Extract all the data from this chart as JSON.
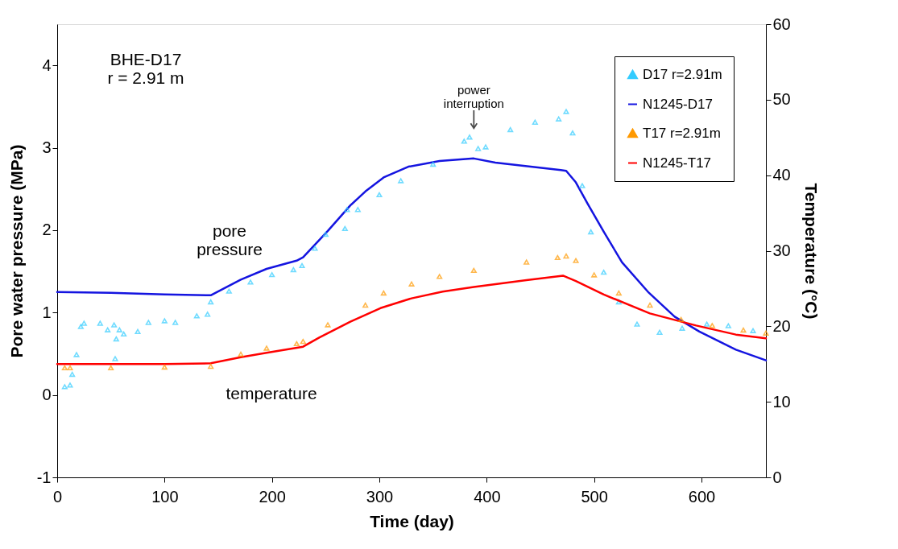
{
  "chart_data": {
    "type": "line",
    "xlabel": "Time   (day)",
    "ylabel": "Pore water pressure   (MPa)",
    "y2label": "Temperature   (°C)",
    "xlim": [
      0,
      660
    ],
    "xticks": [
      0,
      100,
      200,
      300,
      400,
      500,
      600
    ],
    "ylim": [
      -1,
      4.5
    ],
    "yticks": [
      -1,
      0,
      1,
      2,
      3,
      4
    ],
    "y2lim": [
      0,
      60
    ],
    "y2ticks": [
      0,
      10,
      20,
      30,
      40,
      50,
      60
    ],
    "grid": false,
    "legend": "top right",
    "annotations": [
      "BHE-D17\nr = 2.91 m",
      "pore\npressure",
      "temperature",
      {
        "text": "power\ninterruption",
        "x": 388,
        "y": 3.13
      }
    ],
    "series": [
      {
        "name": "D17 r=2.91m",
        "type": "scatter",
        "marker": "triangle",
        "color": "#33ccff",
        "x": [
          7,
          12,
          14,
          18,
          22,
          25,
          40,
          47,
          53,
          54,
          55,
          58,
          62,
          75,
          85,
          100,
          110,
          130,
          140,
          143,
          160,
          180,
          200,
          220,
          228,
          240,
          250,
          268,
          270,
          280,
          300,
          320,
          350,
          379,
          384,
          392,
          399,
          422,
          445,
          467,
          474,
          480,
          489,
          497,
          509,
          523,
          540,
          561,
          582,
          605,
          625,
          648
        ],
        "values": [
          0.1,
          0.12,
          0.25,
          0.49,
          0.83,
          0.87,
          0.87,
          0.79,
          0.85,
          0.44,
          0.68,
          0.79,
          0.74,
          0.77,
          0.88,
          0.9,
          0.88,
          0.96,
          0.98,
          1.13,
          1.26,
          1.37,
          1.46,
          1.52,
          1.57,
          1.78,
          1.95,
          2.02,
          2.25,
          2.25,
          2.43,
          2.6,
          2.8,
          3.08,
          3.13,
          2.99,
          3.01,
          3.22,
          3.31,
          3.35,
          3.44,
          3.18,
          2.54,
          1.98,
          1.49,
          1.13,
          0.86,
          0.76,
          0.81,
          0.86,
          0.84,
          0.78
        ]
      },
      {
        "name": "N1245-D17",
        "color": "#1414e0",
        "x": [
          0,
          50,
          100,
          143,
          171,
          195,
          223,
          229,
          252,
          273,
          287,
          304,
          327,
          356,
          388,
          408,
          469,
          474,
          483,
          494,
          509,
          526,
          551,
          575,
          598,
          632,
          660
        ],
        "values": [
          1.25,
          1.24,
          1.22,
          1.21,
          1.4,
          1.53,
          1.63,
          1.67,
          1.99,
          2.3,
          2.47,
          2.64,
          2.77,
          2.84,
          2.87,
          2.82,
          2.73,
          2.72,
          2.58,
          2.32,
          1.98,
          1.61,
          1.24,
          0.95,
          0.77,
          0.55,
          0.42
        ]
      },
      {
        "name": "T17 r=2.91m",
        "type": "scatter",
        "marker": "triangle",
        "axis": "y2",
        "color": "#ff9900",
        "x": [
          7,
          12,
          50,
          100,
          143,
          171,
          195,
          223,
          229,
          252,
          287,
          304,
          330,
          356,
          388,
          437,
          466,
          474,
          483,
          500,
          523,
          552,
          581,
          610,
          639,
          660
        ],
        "values": [
          14.5,
          14.5,
          14.5,
          14.6,
          14.7,
          16.3,
          17.1,
          17.7,
          18,
          20.2,
          22.8,
          24.4,
          25.6,
          26.6,
          27.4,
          28.5,
          29.1,
          29.3,
          28.7,
          26.8,
          24.4,
          22.8,
          20.9,
          20.1,
          19.5,
          19.1
        ]
      },
      {
        "name": "N1245-T17",
        "axis": "y2",
        "color": "#ff0000",
        "x": [
          0,
          50,
          100,
          143,
          171,
          195,
          229,
          244,
          273,
          301,
          330,
          359,
          388,
          437,
          471,
          483,
          509,
          552,
          595,
          632,
          660
        ],
        "values": [
          15,
          15,
          15,
          15.1,
          15.9,
          16.5,
          17.3,
          18.5,
          20.6,
          22.4,
          23.7,
          24.6,
          25.2,
          26.1,
          26.7,
          26,
          24.2,
          21.7,
          20.1,
          18.9,
          18.4
        ]
      }
    ]
  }
}
